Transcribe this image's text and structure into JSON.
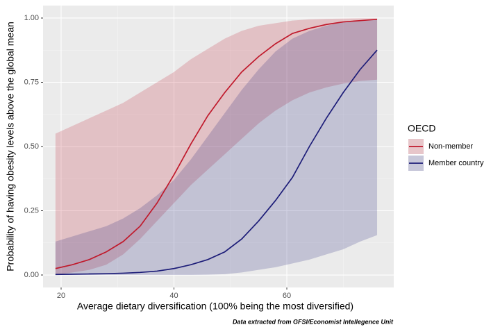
{
  "chart_data": {
    "type": "line-ribbon",
    "x_label": "Average dietary diversification (100% being the most diversified)",
    "y_label": "Probability of having obesity levels above the global mean",
    "caption": "Data extracted from GFSI/Economist Intellegence Unit",
    "legend_title": "OECD",
    "legend_position": "right",
    "grid": true,
    "ribbon_alpha": 0.2,
    "x": [
      19,
      22,
      25,
      28,
      31,
      34,
      37,
      40,
      43,
      46,
      49,
      52,
      55,
      58,
      61,
      64,
      67,
      70,
      73,
      76
    ],
    "series": [
      {
        "name": "Non-member",
        "color": "#c0192b",
        "values": [
          0.025,
          0.04,
          0.06,
          0.09,
          0.13,
          0.19,
          0.28,
          0.39,
          0.51,
          0.62,
          0.71,
          0.79,
          0.85,
          0.9,
          0.94,
          0.96,
          0.975,
          0.985,
          0.99,
          0.995
        ],
        "lower": [
          0,
          0.01,
          0.02,
          0.04,
          0.08,
          0.14,
          0.21,
          0.28,
          0.35,
          0.41,
          0.47,
          0.53,
          0.59,
          0.64,
          0.68,
          0.71,
          0.73,
          0.745,
          0.755,
          0.76
        ],
        "upper": [
          0.55,
          0.58,
          0.61,
          0.64,
          0.67,
          0.71,
          0.75,
          0.79,
          0.84,
          0.88,
          0.92,
          0.95,
          0.97,
          0.98,
          0.99,
          0.995,
          0.997,
          0.998,
          0.999,
          0.999
        ]
      },
      {
        "name": "Member country",
        "color": "#1c1c78",
        "values": [
          0.002,
          0.003,
          0.004,
          0.005,
          0.007,
          0.01,
          0.015,
          0.025,
          0.04,
          0.06,
          0.09,
          0.14,
          0.21,
          0.29,
          0.38,
          0.5,
          0.61,
          0.71,
          0.8,
          0.875
        ],
        "lower": [
          0,
          0,
          0,
          0,
          0,
          0,
          0,
          0,
          0,
          0.001,
          0.003,
          0.01,
          0.02,
          0.03,
          0.045,
          0.06,
          0.08,
          0.1,
          0.13,
          0.155
        ],
        "upper": [
          0.13,
          0.15,
          0.17,
          0.19,
          0.22,
          0.26,
          0.31,
          0.37,
          0.45,
          0.54,
          0.63,
          0.72,
          0.8,
          0.87,
          0.92,
          0.95,
          0.97,
          0.985,
          0.99,
          0.995
        ]
      }
    ],
    "xlim": [
      16.8,
      78.95
    ],
    "ylim": [
      -0.0486,
      1.0486
    ],
    "xticks": [
      20,
      40,
      60
    ],
    "xminorticks": [
      30,
      50,
      70
    ],
    "yticks": [
      {
        "value": 0,
        "label": "0.00"
      },
      {
        "value": 0.25,
        "label": "0.25"
      },
      {
        "value": 0.5,
        "label": "0.50"
      },
      {
        "value": 0.75,
        "label": "0.75"
      },
      {
        "value": 1,
        "label": "1.00"
      }
    ],
    "yminorticks": [
      0.125,
      0.375,
      0.625,
      0.875
    ]
  }
}
